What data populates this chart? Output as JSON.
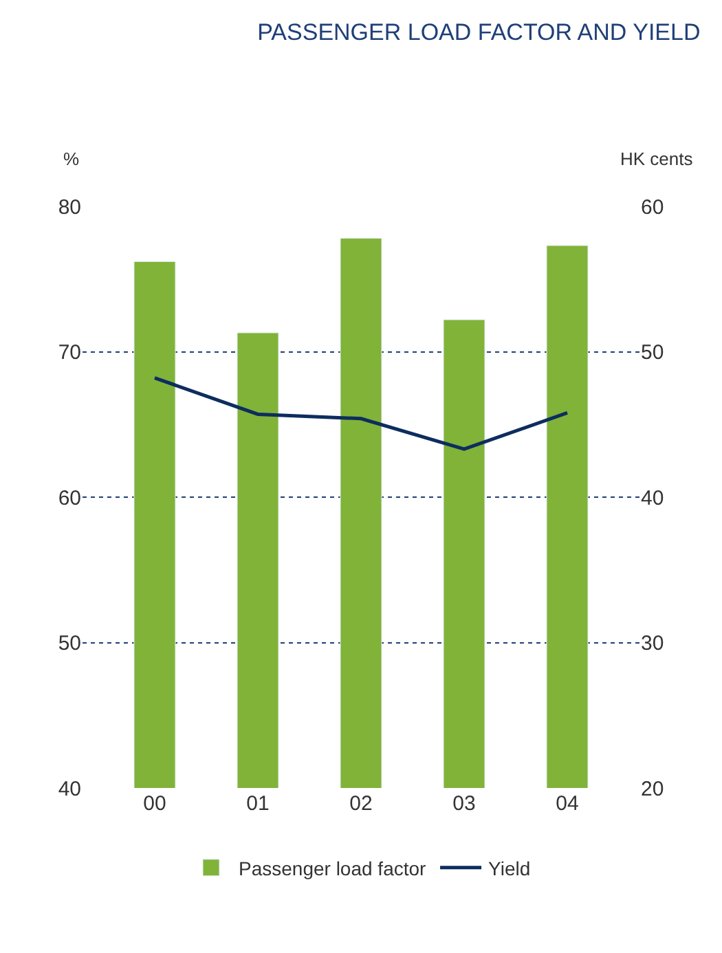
{
  "chart_data": {
    "type": "bar",
    "title": "PASSENGER LOAD FACTOR AND YIELD",
    "ylabel": "%",
    "y2label": "HK cents",
    "categories": [
      "00",
      "01",
      "02",
      "03",
      "04"
    ],
    "series": [
      {
        "name": "Passenger load factor",
        "color": "#80b338",
        "values": [
          76.2,
          71.3,
          77.8,
          72.2,
          77.3
        ]
      },
      {
        "name": "Yield",
        "type": "line",
        "axis": "y2",
        "color": "#0d2d5e",
        "values": [
          48.2,
          45.7,
          45.4,
          43.3,
          45.8
        ]
      }
    ],
    "ylim": [
      40,
      80
    ],
    "yticks": [
      40,
      50,
      60,
      70,
      80
    ],
    "y2lim": [
      20,
      60
    ],
    "y2ticks": [
      20,
      30,
      40,
      50,
      60
    ],
    "grid": "y",
    "legend": "bottom",
    "marker": "none",
    "line_style": "solid"
  }
}
